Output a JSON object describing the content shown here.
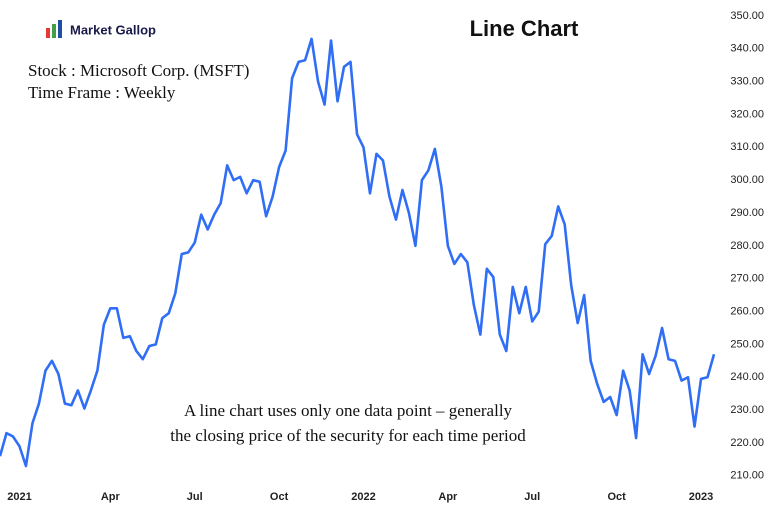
{
  "brand": "Market Gallop",
  "chart_data": {
    "type": "line",
    "title": "Line Chart",
    "annotations": [
      "Stock : Microsoft Corp. (MSFT)",
      "Time Frame : Weekly",
      "A line chart uses only one data point – generally",
      "the closing price of the security for each time period"
    ],
    "categories": [
      null,
      null,
      null,
      "2021",
      null,
      null,
      null,
      null,
      null,
      null,
      null,
      null,
      null,
      null,
      null,
      null,
      null,
      "Apr",
      null,
      null,
      null,
      null,
      null,
      null,
      null,
      null,
      null,
      null,
      null,
      null,
      "Jul",
      null,
      null,
      null,
      null,
      null,
      null,
      null,
      null,
      null,
      null,
      null,
      null,
      "Oct",
      null,
      null,
      null,
      null,
      null,
      null,
      null,
      null,
      null,
      null,
      null,
      null,
      "2022",
      null,
      null,
      null,
      null,
      null,
      null,
      null,
      null,
      null,
      null,
      null,
      null,
      "Apr",
      null,
      null,
      null,
      null,
      null,
      null,
      null,
      null,
      null,
      null,
      null,
      null,
      "Jul",
      null,
      null,
      null,
      null,
      null,
      null,
      null,
      null,
      null,
      null,
      null,
      null,
      "Oct",
      null,
      null,
      null,
      null,
      null,
      null,
      null,
      null,
      null,
      null,
      null,
      null,
      "2023",
      null,
      null
    ],
    "series": [
      {
        "name": "MSFT",
        "color": "#2f6ef5",
        "values": [
          216,
          223,
          222,
          219,
          213,
          226,
          232,
          242,
          245,
          241,
          232,
          231.5,
          236,
          230.5,
          236,
          242,
          256,
          261,
          261,
          252,
          252.5,
          248,
          245.5,
          249.5,
          250,
          258,
          259.5,
          265.5,
          277.5,
          278,
          281,
          289.5,
          285,
          289.5,
          293,
          304.5,
          300,
          301,
          296,
          300,
          299.5,
          289,
          295,
          304,
          309,
          331,
          336,
          336.5,
          343,
          330,
          323,
          342.5,
          324,
          334.5,
          336,
          314,
          310,
          296,
          308,
          306,
          295,
          288,
          297,
          290,
          280,
          300,
          303,
          309.5,
          298,
          280,
          274.5,
          277.5,
          275,
          262,
          253,
          273,
          270.5,
          253,
          248,
          267.5,
          259.5,
          267.5,
          257,
          260,
          280.5,
          283,
          292,
          286.5,
          268,
          256.5,
          265,
          245,
          238,
          232.5,
          234,
          228.5,
          242,
          236,
          221.5,
          247,
          241,
          246.5,
          255,
          245.5,
          245,
          239,
          240,
          225,
          239.5,
          240,
          247
        ]
      }
    ],
    "ylim": [
      206.3,
      353
    ],
    "yticks": [
      {
        "value": 210,
        "label": "210.00"
      },
      {
        "value": 220,
        "label": "220.00"
      },
      {
        "value": 230,
        "label": "230.00"
      },
      {
        "value": 240,
        "label": "240.00"
      },
      {
        "value": 250,
        "label": "250.00"
      },
      {
        "value": 260,
        "label": "260.00"
      },
      {
        "value": 270,
        "label": "270.00"
      },
      {
        "value": 280,
        "label": "280.00"
      },
      {
        "value": 290,
        "label": "290.00"
      },
      {
        "value": 300,
        "label": "300.00"
      },
      {
        "value": 310,
        "label": "310.00"
      },
      {
        "value": 320,
        "label": "320.00"
      },
      {
        "value": 330,
        "label": "330.00"
      },
      {
        "value": 340,
        "label": "340.00"
      },
      {
        "value": 350,
        "label": "350.00"
      }
    ],
    "grid": false
  }
}
